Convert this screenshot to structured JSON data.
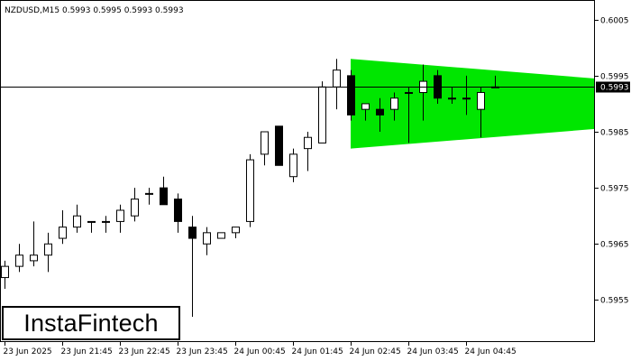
{
  "chart_data": {
    "type": "candlestick",
    "symbol_label": "NZDUSD,M15  0.5993 0.5995 0.5993 0.5993",
    "current_price": 0.5993,
    "current_price_label": "0.5993",
    "ylim": [
      0.59475,
      0.60085
    ],
    "y_ticks": [
      "0.6005",
      "0.5995",
      "0.5985",
      "0.5975",
      "0.5965",
      "0.5955"
    ],
    "y_tick_values": [
      0.6005,
      0.5995,
      0.5985,
      0.5975,
      0.5965,
      0.5955
    ],
    "x_ticks": [
      "23 Jun 2025",
      "23 Jun 21:45",
      "23 Jun 22:45",
      "23 Jun 23:45",
      "24 Jun 00:45",
      "24 Jun 01:45",
      "24 Jun 02:45",
      "24 Jun 03:45",
      "24 Jun 04:45"
    ],
    "x_tick_bars": [
      0,
      4,
      8,
      12,
      16,
      20,
      24,
      28,
      32
    ],
    "candles": [
      {
        "o": 0.5959,
        "h": 0.5962,
        "l": 0.5957,
        "c": 0.5961
      },
      {
        "o": 0.5961,
        "h": 0.5965,
        "l": 0.596,
        "c": 0.5963
      },
      {
        "o": 0.5962,
        "h": 0.5969,
        "l": 0.5961,
        "c": 0.5963
      },
      {
        "o": 0.5963,
        "h": 0.5967,
        "l": 0.596,
        "c": 0.5965
      },
      {
        "o": 0.5966,
        "h": 0.5971,
        "l": 0.5965,
        "c": 0.5968
      },
      {
        "o": 0.5968,
        "h": 0.5972,
        "l": 0.5967,
        "c": 0.597
      },
      {
        "o": 0.5969,
        "h": 0.5969,
        "l": 0.5967,
        "c": 0.5969
      },
      {
        "o": 0.5969,
        "h": 0.597,
        "l": 0.5967,
        "c": 0.5969
      },
      {
        "o": 0.5969,
        "h": 0.5972,
        "l": 0.5967,
        "c": 0.5971
      },
      {
        "o": 0.597,
        "h": 0.5975,
        "l": 0.5969,
        "c": 0.5973
      },
      {
        "o": 0.5974,
        "h": 0.5975,
        "l": 0.5972,
        "c": 0.5974
      },
      {
        "o": 0.5975,
        "h": 0.5977,
        "l": 0.5972,
        "c": 0.5972
      },
      {
        "o": 0.5973,
        "h": 0.5974,
        "l": 0.5967,
        "c": 0.5969
      },
      {
        "o": 0.5968,
        "h": 0.597,
        "l": 0.5952,
        "c": 0.5966
      },
      {
        "o": 0.5965,
        "h": 0.5968,
        "l": 0.5963,
        "c": 0.5967
      },
      {
        "o": 0.5966,
        "h": 0.5967,
        "l": 0.5966,
        "c": 0.5967
      },
      {
        "o": 0.5967,
        "h": 0.5968,
        "l": 0.5966,
        "c": 0.5968
      },
      {
        "o": 0.5969,
        "h": 0.5981,
        "l": 0.5968,
        "c": 0.598
      },
      {
        "o": 0.5981,
        "h": 0.5985,
        "l": 0.5979,
        "c": 0.5985
      },
      {
        "o": 0.5986,
        "h": 0.5986,
        "l": 0.5979,
        "c": 0.5979
      },
      {
        "o": 0.5977,
        "h": 0.5982,
        "l": 0.5976,
        "c": 0.5981
      },
      {
        "o": 0.5982,
        "h": 0.5985,
        "l": 0.5978,
        "c": 0.5984
      },
      {
        "o": 0.5983,
        "h": 0.5994,
        "l": 0.5983,
        "c": 0.5993
      },
      {
        "o": 0.5993,
        "h": 0.5998,
        "l": 0.5989,
        "c": 0.5996
      },
      {
        "o": 0.5995,
        "h": 0.5996,
        "l": 0.5987,
        "c": 0.5988
      },
      {
        "o": 0.5989,
        "h": 0.599,
        "l": 0.5987,
        "c": 0.599
      },
      {
        "o": 0.5989,
        "h": 0.5991,
        "l": 0.5985,
        "c": 0.5988
      },
      {
        "o": 0.5989,
        "h": 0.5992,
        "l": 0.5987,
        "c": 0.5991
      },
      {
        "o": 0.5992,
        "h": 0.5993,
        "l": 0.5983,
        "c": 0.5992
      },
      {
        "o": 0.5992,
        "h": 0.5997,
        "l": 0.5987,
        "c": 0.5994
      },
      {
        "o": 0.5995,
        "h": 0.5996,
        "l": 0.599,
        "c": 0.5991
      },
      {
        "o": 0.5991,
        "h": 0.5993,
        "l": 0.599,
        "c": 0.5991
      },
      {
        "o": 0.5991,
        "h": 0.5995,
        "l": 0.5988,
        "c": 0.5991
      },
      {
        "o": 0.5989,
        "h": 0.5993,
        "l": 0.5984,
        "c": 0.5992
      },
      {
        "o": 0.5993,
        "h": 0.5995,
        "l": 0.5993,
        "c": 0.5993
      }
    ],
    "pattern": {
      "name": "bearish symmetrical triangle",
      "color": "#00e600",
      "start_bar": 24,
      "end_bar": 41,
      "start_upper": 0.5998,
      "start_lower": 0.5982,
      "end_upper": 0.59945,
      "end_lower": 0.59855
    },
    "colors": {
      "bull_body": "#ffffff",
      "bear_body": "#000000",
      "outline": "#000000",
      "price_line": "#000000",
      "price_box": "#000000"
    }
  },
  "watermark": {
    "text": "InstaFintech"
  }
}
